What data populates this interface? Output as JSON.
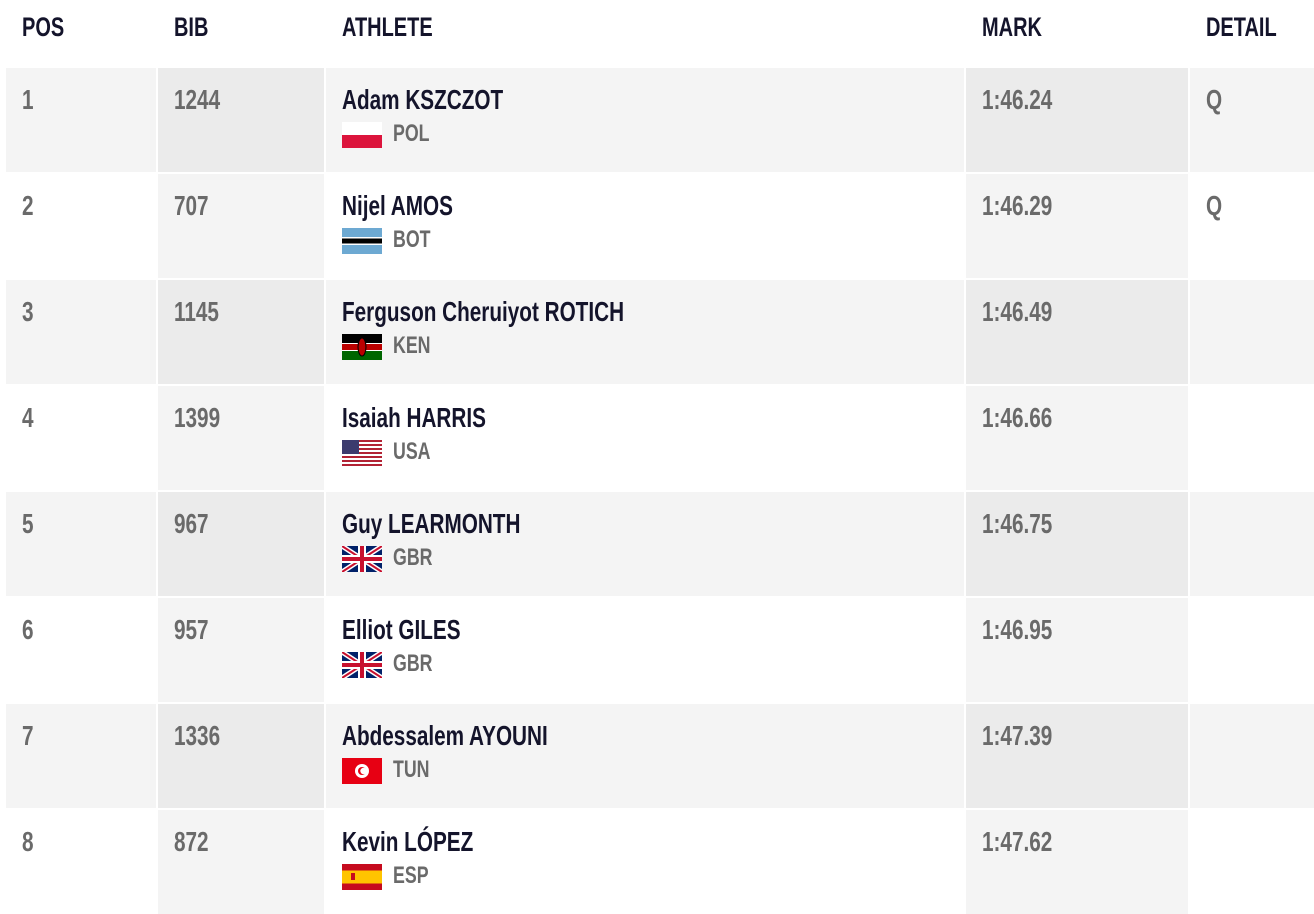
{
  "header": {
    "pos": "POS",
    "bib": "BIB",
    "athlete": "ATHLETE",
    "mark": "MARK",
    "detail": "DETAIL"
  },
  "rows": [
    {
      "pos": "1",
      "bib": "1244",
      "athlete": "Adam KSZCZOT",
      "country": "POL",
      "mark": "1:46.24",
      "detail": "Q"
    },
    {
      "pos": "2",
      "bib": "707",
      "athlete": "Nijel AMOS",
      "country": "BOT",
      "mark": "1:46.29",
      "detail": "Q"
    },
    {
      "pos": "3",
      "bib": "1145",
      "athlete": "Ferguson Cheruiyot ROTICH",
      "country": "KEN",
      "mark": "1:46.49"
    },
    {
      "pos": "4",
      "bib": "1399",
      "athlete": "Isaiah HARRIS",
      "country": "USA",
      "mark": "1:46.66"
    },
    {
      "pos": "5",
      "bib": "967",
      "athlete": "Guy LEARMONTH",
      "country": "GBR",
      "mark": "1:46.75"
    },
    {
      "pos": "6",
      "bib": "957",
      "athlete": "Elliot GILES",
      "country": "GBR",
      "mark": "1:46.95"
    },
    {
      "pos": "7",
      "bib": "1336",
      "athlete": "Abdessalem AYOUNI",
      "country": "TUN",
      "mark": "1:47.39"
    },
    {
      "pos": "8",
      "bib": "872",
      "athlete": "Kevin LÓPEZ",
      "country": "ESP",
      "mark": "1:47.62"
    }
  ]
}
